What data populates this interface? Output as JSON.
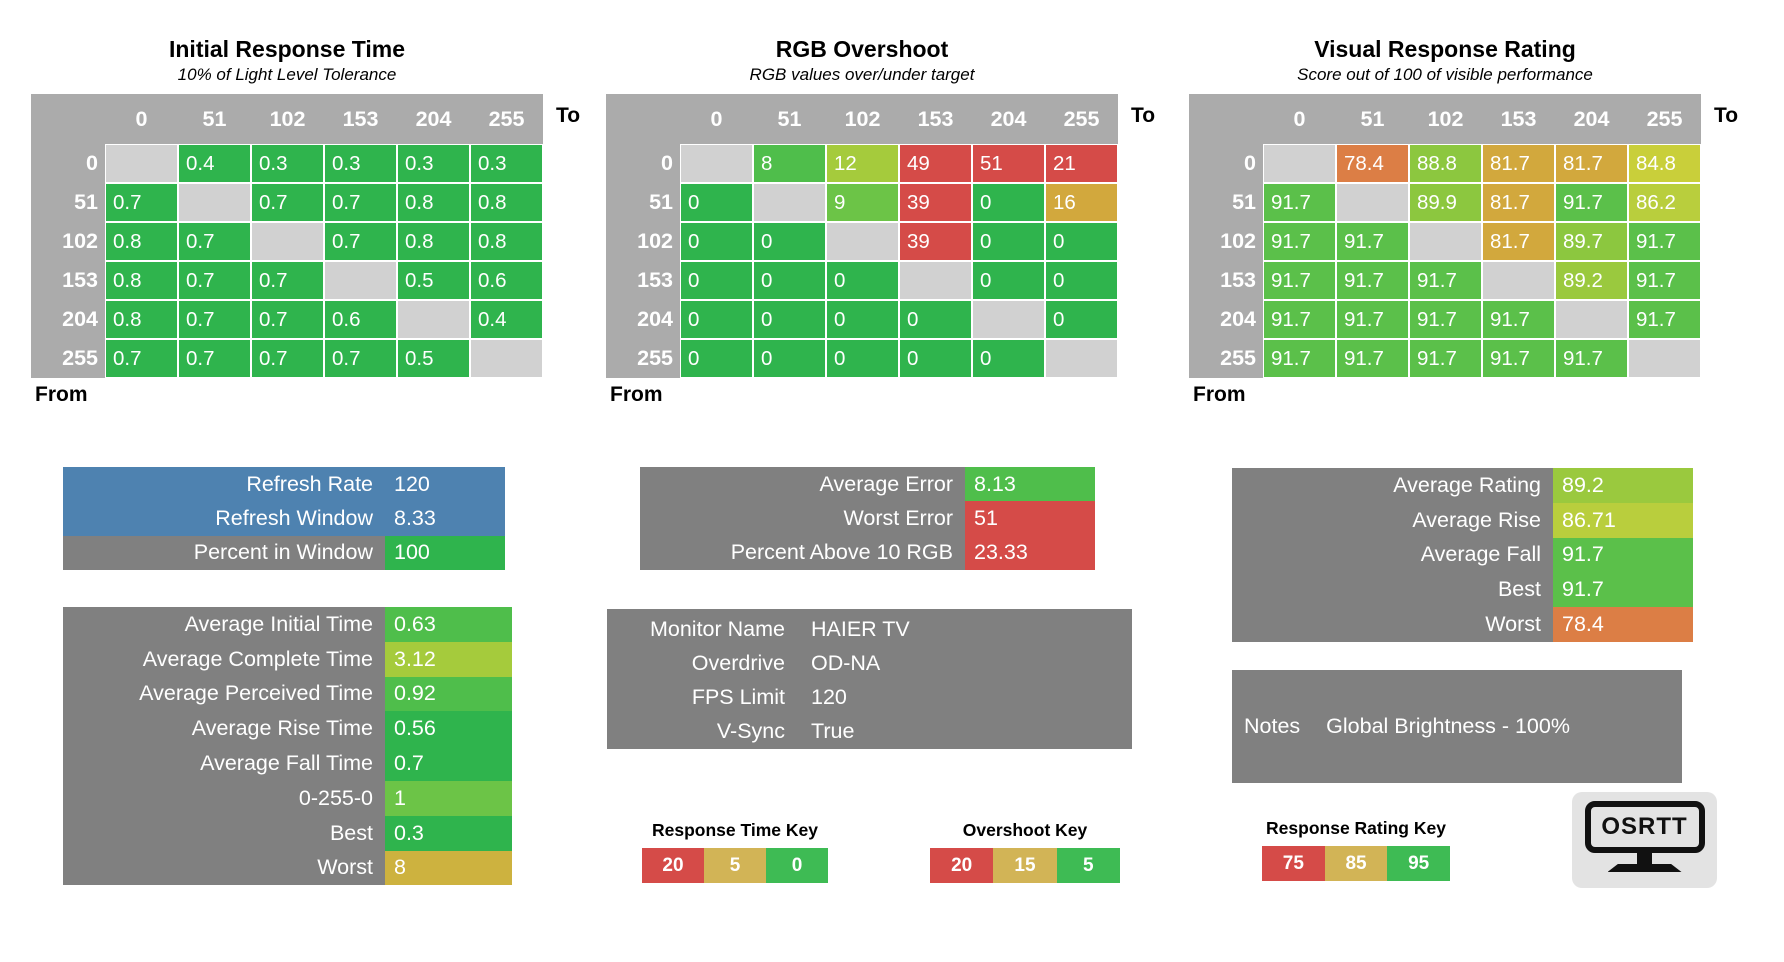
{
  "colors": {
    "green": "#2FB44D",
    "g8": "#4FBE4B",
    "g9": "#6CC447",
    "g91": "#5BC04A",
    "lg": "#8CC73F",
    "lg2": "#9AC93E",
    "yg": "#A5CB3C",
    "yg2": "#C9CF3A",
    "yg3": "#B9CE3D",
    "gold": "#D2A83D",
    "gold2": "#CDB23F",
    "goldKey": "#D2B456",
    "keyGreen": "#3EBB54",
    "orange": "#DC7E45",
    "red": "#D54B48",
    "blue": "#4E82B0",
    "panelGrey": "#808080",
    "headerGrey": "#ABABAB",
    "diagGrey": "#D1D1D1"
  },
  "chart_data": [
    {
      "type": "heatmap",
      "id": "initial-response-time",
      "title": "Initial Response Time",
      "subtitle": "10% of Light Level Tolerance",
      "to_label": "To",
      "from_label": "From",
      "x_labels": [
        "0",
        "51",
        "102",
        "153",
        "204",
        "255"
      ],
      "y_labels": [
        "0",
        "51",
        "102",
        "153",
        "204",
        "255"
      ],
      "values": [
        [
          null,
          0.4,
          0.3,
          0.3,
          0.3,
          0.3
        ],
        [
          0.7,
          null,
          0.7,
          0.7,
          0.8,
          0.8
        ],
        [
          0.8,
          0.7,
          null,
          0.7,
          0.8,
          0.8
        ],
        [
          0.8,
          0.7,
          0.7,
          null,
          0.5,
          0.6
        ],
        [
          0.8,
          0.7,
          0.7,
          0.6,
          null,
          0.4
        ],
        [
          0.7,
          0.7,
          0.7,
          0.7,
          0.5,
          null
        ]
      ],
      "cell_colors": [
        [
          null,
          "green",
          "green",
          "green",
          "green",
          "green"
        ],
        [
          "green",
          null,
          "green",
          "green",
          "green",
          "green"
        ],
        [
          "green",
          "green",
          null,
          "green",
          "green",
          "green"
        ],
        [
          "green",
          "green",
          "green",
          null,
          "green",
          "green"
        ],
        [
          "green",
          "green",
          "green",
          "green",
          null,
          "green"
        ],
        [
          "green",
          "green",
          "green",
          "green",
          "green",
          null
        ]
      ]
    },
    {
      "type": "heatmap",
      "id": "rgb-overshoot",
      "title": "RGB Overshoot",
      "subtitle": "RGB values over/under target",
      "to_label": "To",
      "from_label": "From",
      "x_labels": [
        "0",
        "51",
        "102",
        "153",
        "204",
        "255"
      ],
      "y_labels": [
        "0",
        "51",
        "102",
        "153",
        "204",
        "255"
      ],
      "values": [
        [
          null,
          8,
          12,
          49,
          51,
          21
        ],
        [
          0,
          null,
          9,
          39,
          0,
          16
        ],
        [
          0,
          0,
          null,
          39,
          0,
          0
        ],
        [
          0,
          0,
          0,
          null,
          0,
          0
        ],
        [
          0,
          0,
          0,
          0,
          null,
          0
        ],
        [
          0,
          0,
          0,
          0,
          0,
          null
        ]
      ],
      "cell_colors": [
        [
          null,
          "g8",
          "yg",
          "red",
          "red",
          "red"
        ],
        [
          "green",
          null,
          "g9",
          "red",
          "green",
          "gold"
        ],
        [
          "green",
          "green",
          null,
          "red",
          "green",
          "green"
        ],
        [
          "green",
          "green",
          "green",
          null,
          "green",
          "green"
        ],
        [
          "green",
          "green",
          "green",
          "green",
          null,
          "green"
        ],
        [
          "green",
          "green",
          "green",
          "green",
          "green",
          null
        ]
      ]
    },
    {
      "type": "heatmap",
      "id": "visual-response-rating",
      "title": "Visual Response Rating",
      "subtitle": "Score out of 100 of visible performance",
      "to_label": "To",
      "from_label": "From",
      "x_labels": [
        "0",
        "51",
        "102",
        "153",
        "204",
        "255"
      ],
      "y_labels": [
        "0",
        "51",
        "102",
        "153",
        "204",
        "255"
      ],
      "values": [
        [
          null,
          78.4,
          88.8,
          81.7,
          81.7,
          84.8
        ],
        [
          91.7,
          null,
          89.9,
          81.7,
          91.7,
          86.2
        ],
        [
          91.7,
          91.7,
          null,
          81.7,
          89.7,
          91.7
        ],
        [
          91.7,
          91.7,
          91.7,
          null,
          89.2,
          91.7
        ],
        [
          91.7,
          91.7,
          91.7,
          91.7,
          null,
          91.7
        ],
        [
          91.7,
          91.7,
          91.7,
          91.7,
          91.7,
          null
        ]
      ],
      "cell_colors": [
        [
          null,
          "orange",
          "lg",
          "gold",
          "gold",
          "yg2"
        ],
        [
          "g91",
          null,
          "lg",
          "gold",
          "g91",
          "yg3"
        ],
        [
          "g91",
          "g91",
          null,
          "gold",
          "lg",
          "g91"
        ],
        [
          "g91",
          "g91",
          "g91",
          null,
          "lg2",
          "g91"
        ],
        [
          "g91",
          "g91",
          "g91",
          "g91",
          null,
          "g91"
        ],
        [
          "g91",
          "g91",
          "g91",
          "g91",
          "g91",
          null
        ]
      ]
    }
  ],
  "panels": {
    "refresh": {
      "rows": [
        {
          "label": "Refresh Rate",
          "value": "120",
          "rowBg": "blue",
          "valueBg": "blue"
        },
        {
          "label": "Refresh Window",
          "value": "8.33",
          "rowBg": "blue",
          "valueBg": "blue"
        },
        {
          "label": "Percent in Window",
          "value": "100",
          "valueBg": "green"
        }
      ]
    },
    "times": {
      "rows": [
        {
          "label": "Average Initial Time",
          "value": "0.63",
          "valueBg": "g8"
        },
        {
          "label": "Average Complete Time",
          "value": "3.12",
          "valueBg": "yg"
        },
        {
          "label": "Average Perceived Time",
          "value": "0.92",
          "valueBg": "g8"
        },
        {
          "label": "Average Rise Time",
          "value": "0.56",
          "valueBg": "green"
        },
        {
          "label": "Average Fall Time",
          "value": "0.7",
          "valueBg": "green"
        },
        {
          "label": "0-255-0",
          "value": "1",
          "valueBg": "g9"
        },
        {
          "label": "Best",
          "value": "0.3",
          "valueBg": "green"
        },
        {
          "label": "Worst",
          "value": "8",
          "valueBg": "gold2"
        }
      ]
    },
    "error": {
      "rows": [
        {
          "label": "Average Error",
          "value": "8.13",
          "valueBg": "g8"
        },
        {
          "label": "Worst Error",
          "value": "51",
          "valueBg": "red"
        },
        {
          "label": "Percent Above 10 RGB",
          "value": "23.33",
          "valueBg": "red"
        }
      ]
    },
    "monitor": {
      "plain": true,
      "rows": [
        {
          "label": "Monitor Name",
          "value": "HAIER TV"
        },
        {
          "label": "Overdrive",
          "value": "OD-NA"
        },
        {
          "label": "FPS Limit",
          "value": "120"
        },
        {
          "label": "V-Sync",
          "value": "True"
        }
      ]
    },
    "rating": {
      "rows": [
        {
          "label": "Average Rating",
          "value": "89.2",
          "valueBg": "lg2"
        },
        {
          "label": "Average Rise",
          "value": "86.71",
          "valueBg": "yg3"
        },
        {
          "label": "Average Fall",
          "value": "91.7",
          "valueBg": "g91"
        },
        {
          "label": "Best",
          "value": "91.7",
          "valueBg": "g91"
        },
        {
          "label": "Worst",
          "value": "78.4",
          "valueBg": "orange"
        }
      ]
    },
    "notes": {
      "label": "Notes",
      "value": "Global Brightness - 100%"
    }
  },
  "keys": [
    {
      "id": "response-time-key",
      "title": "Response Time Key",
      "segments": [
        {
          "v": "20",
          "c": "red"
        },
        {
          "v": "5",
          "c": "goldKey"
        },
        {
          "v": "0",
          "c": "keyGreen"
        }
      ]
    },
    {
      "id": "overshoot-key",
      "title": "Overshoot Key",
      "segments": [
        {
          "v": "20",
          "c": "red"
        },
        {
          "v": "15",
          "c": "goldKey"
        },
        {
          "v": "5",
          "c": "keyGreen"
        }
      ]
    },
    {
      "id": "response-rating-key",
      "title": "Response Rating Key",
      "segments": [
        {
          "v": "75",
          "c": "red"
        },
        {
          "v": "85",
          "c": "goldKey"
        },
        {
          "v": "95",
          "c": "keyGreen"
        }
      ]
    }
  ],
  "logo": {
    "text": "OSRTT"
  }
}
